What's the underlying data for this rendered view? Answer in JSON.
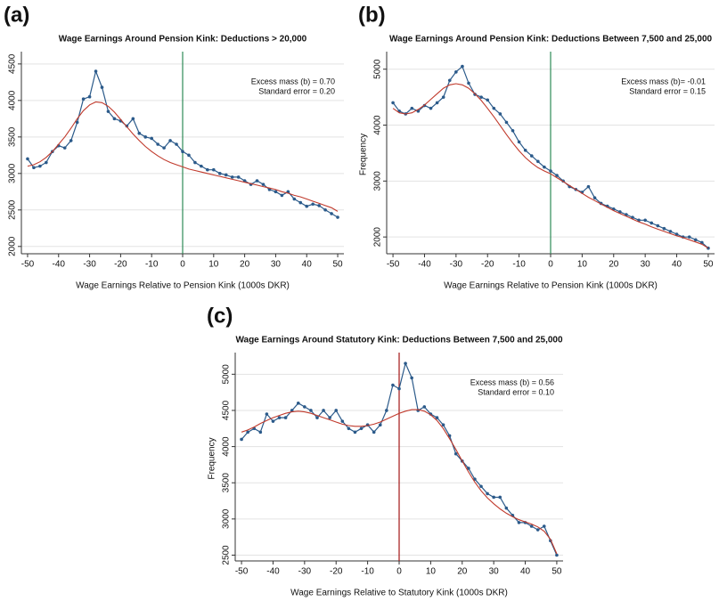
{
  "chart_data": [
    {
      "type": "line",
      "panel": "(a)",
      "title": "Wage Earnings Around Pension Kink: Deductions > 20,000",
      "x_label": "Wage Earnings Relative to Pension Kink (1000s DKR)",
      "annotations": [
        "Excess mass (b) = 0.70",
        "Standard error = 0.20"
      ],
      "x": [
        -50,
        -48,
        -46,
        -44,
        -42,
        -40,
        -38,
        -36,
        -34,
        -32,
        -30,
        -28,
        -26,
        -24,
        -22,
        -20,
        -18,
        -16,
        -14,
        -12,
        -10,
        -8,
        -6,
        -4,
        -2,
        0,
        2,
        4,
        6,
        8,
        10,
        12,
        14,
        16,
        18,
        20,
        22,
        24,
        26,
        28,
        30,
        32,
        34,
        36,
        38,
        40,
        42,
        44,
        46,
        48,
        50
      ],
      "series": [
        {
          "color": "#2b5a8a",
          "markers": true,
          "values": [
            3200,
            3080,
            3100,
            3150,
            3300,
            3380,
            3350,
            3450,
            3700,
            4020,
            4050,
            4400,
            4180,
            3850,
            3750,
            3720,
            3650,
            3750,
            3550,
            3500,
            3480,
            3400,
            3350,
            3450,
            3400,
            3300,
            3250,
            3150,
            3100,
            3050,
            3050,
            3000,
            2980,
            2950,
            2950,
            2900,
            2850,
            2900,
            2850,
            2780,
            2750,
            2700,
            2750,
            2650,
            2600,
            2550,
            2580,
            2560,
            2500,
            2450,
            2400
          ]
        },
        {
          "color": "#c0392b",
          "markers": false,
          "values": [
            3100,
            3120,
            3160,
            3220,
            3300,
            3400,
            3500,
            3620,
            3750,
            3860,
            3940,
            3980,
            3970,
            3920,
            3840,
            3740,
            3640,
            3540,
            3450,
            3370,
            3300,
            3240,
            3190,
            3150,
            3120,
            3090,
            3060,
            3040,
            3020,
            3000,
            2980,
            2960,
            2940,
            2920,
            2900,
            2880,
            2860,
            2840,
            2820,
            2800,
            2780,
            2750,
            2730,
            2700,
            2680,
            2650,
            2620,
            2590,
            2560,
            2530,
            2480
          ]
        }
      ],
      "vline": {
        "x": 0,
        "color": "#2e8b57"
      },
      "xlim": [
        -52,
        52
      ],
      "xticks": [
        -50,
        -40,
        -30,
        -20,
        -10,
        0,
        10,
        20,
        30,
        40,
        50
      ],
      "ylim": [
        1900,
        4620
      ],
      "yticks": [
        2000,
        2500,
        3000,
        3500,
        4000,
        4500
      ],
      "grid": true
    },
    {
      "type": "line",
      "panel": "(b)",
      "title": "Wage Earnings Around Pension Kink: Deductions Between 7,500 and 25,000",
      "x_label": "Wage Earnings Relative to Pension Kink (1000s DKR)",
      "y_label": "Frequency",
      "annotations": [
        "Excess mass (b)= -0.01",
        "Standard error = 0.15"
      ],
      "x": [
        -50,
        -48,
        -46,
        -44,
        -42,
        -40,
        -38,
        -36,
        -34,
        -32,
        -30,
        -28,
        -26,
        -24,
        -22,
        -20,
        -18,
        -16,
        -14,
        -12,
        -10,
        -8,
        -6,
        -4,
        -2,
        0,
        2,
        4,
        6,
        8,
        10,
        12,
        14,
        16,
        18,
        20,
        22,
        24,
        26,
        28,
        30,
        32,
        34,
        36,
        38,
        40,
        42,
        44,
        46,
        48,
        50
      ],
      "series": [
        {
          "color": "#2b5a8a",
          "markers": true,
          "values": [
            4400,
            4250,
            4200,
            4300,
            4250,
            4350,
            4300,
            4400,
            4500,
            4800,
            4950,
            5050,
            4750,
            4550,
            4500,
            4450,
            4300,
            4200,
            4050,
            3900,
            3700,
            3550,
            3450,
            3350,
            3250,
            3180,
            3100,
            3000,
            2900,
            2850,
            2800,
            2900,
            2700,
            2600,
            2550,
            2500,
            2450,
            2400,
            2350,
            2300,
            2300,
            2250,
            2200,
            2150,
            2100,
            2050,
            2000,
            2000,
            1950,
            1900,
            1800
          ]
        },
        {
          "color": "#c0392b",
          "markers": false,
          "values": [
            4300,
            4220,
            4200,
            4220,
            4280,
            4360,
            4460,
            4560,
            4660,
            4720,
            4740,
            4720,
            4660,
            4560,
            4440,
            4300,
            4150,
            3990,
            3830,
            3680,
            3540,
            3420,
            3320,
            3240,
            3180,
            3130,
            3060,
            2990,
            2920,
            2850,
            2780,
            2710,
            2650,
            2590,
            2530,
            2470,
            2420,
            2370,
            2320,
            2270,
            2230,
            2180,
            2140,
            2100,
            2060,
            2020,
            1990,
            1950,
            1910,
            1870,
            1800
          ]
        }
      ],
      "vline": {
        "x": 0,
        "color": "#2e8b57"
      },
      "xlim": [
        -52,
        52
      ],
      "xticks": [
        -50,
        -40,
        -30,
        -20,
        -10,
        0,
        10,
        20,
        30,
        40,
        50
      ],
      "ylim": [
        1700,
        5250
      ],
      "yticks": [
        2000,
        3000,
        4000,
        5000
      ],
      "grid": true
    },
    {
      "type": "line",
      "panel": "(c)",
      "title": "Wage Earnings Around Statutory Kink: Deductions Between 7,500 and 25,000",
      "x_label": "Wage Earnings Relative to Statutory Kink (1000s DKR)",
      "y_label": "Frequency",
      "annotations": [
        "Excess mass (b) = 0.56",
        "Standard error = 0.10"
      ],
      "x": [
        -50,
        -48,
        -46,
        -44,
        -42,
        -40,
        -38,
        -36,
        -34,
        -32,
        -30,
        -28,
        -26,
        -24,
        -22,
        -20,
        -18,
        -16,
        -14,
        -12,
        -10,
        -8,
        -6,
        -4,
        -2,
        0,
        2,
        4,
        6,
        8,
        10,
        12,
        14,
        16,
        18,
        20,
        22,
        24,
        26,
        28,
        30,
        32,
        34,
        36,
        38,
        40,
        42,
        44,
        46,
        48,
        50
      ],
      "series": [
        {
          "color": "#2b5a8a",
          "markers": true,
          "values": [
            4100,
            4200,
            4250,
            4200,
            4450,
            4350,
            4400,
            4400,
            4500,
            4600,
            4550,
            4500,
            4400,
            4500,
            4400,
            4500,
            4350,
            4250,
            4200,
            4250,
            4300,
            4200,
            4300,
            4500,
            4850,
            4800,
            5150,
            4950,
            4500,
            4550,
            4450,
            4400,
            4300,
            4150,
            3900,
            3800,
            3700,
            3550,
            3450,
            3350,
            3300,
            3300,
            3150,
            3050,
            2950,
            2950,
            2900,
            2850,
            2900,
            2700,
            2500
          ]
        },
        {
          "color": "#c0392b",
          "markers": false,
          "values": [
            4200,
            4230,
            4270,
            4320,
            4360,
            4400,
            4430,
            4460,
            4480,
            4490,
            4480,
            4460,
            4430,
            4400,
            4370,
            4340,
            4310,
            4290,
            4280,
            4280,
            4290,
            4310,
            4340,
            4380,
            4420,
            4460,
            4490,
            4510,
            4510,
            4490,
            4440,
            4360,
            4250,
            4110,
            3960,
            3800,
            3650,
            3510,
            3390,
            3290,
            3210,
            3140,
            3080,
            3030,
            2990,
            2960,
            2930,
            2890,
            2830,
            2720,
            2520
          ]
        }
      ],
      "vline": {
        "x": 0,
        "color": "#a31515"
      },
      "xlim": [
        -52,
        52
      ],
      "xticks": [
        -50,
        -40,
        -30,
        -20,
        -10,
        0,
        10,
        20,
        30,
        40,
        50
      ],
      "ylim": [
        2420,
        5250
      ],
      "yticks": [
        2500,
        3000,
        3500,
        4000,
        4500,
        5000
      ],
      "grid": true
    }
  ]
}
